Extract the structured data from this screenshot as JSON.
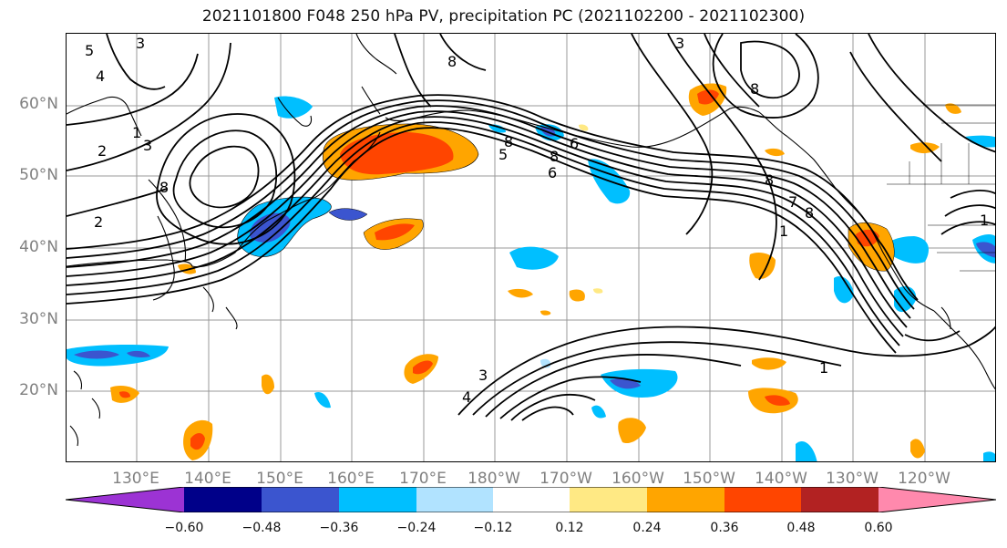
{
  "title": "2021101800 F048 250 hPa PV, precipitation PC (2021102200 - 2021102300)",
  "lat_labels": [
    "60°N",
    "50°N",
    "40°N",
    "30°N",
    "20°N"
  ],
  "lon_labels": [
    "130°E",
    "140°E",
    "150°E",
    "160°E",
    "170°E",
    "180°W",
    "170°W",
    "160°W",
    "150°W",
    "140°W",
    "130°W",
    "120°W"
  ],
  "colorbar": {
    "colors": [
      "#9c33d4",
      "#000089",
      "#3b55cf",
      "#00bfff",
      "#b1e3ff",
      "#ffffff",
      "#ffe984",
      "#ffa500",
      "#ff4500",
      "#b22222",
      "#ff89ad"
    ],
    "tick_labels": [
      "−0.60",
      "−0.48",
      "−0.36",
      "−0.24",
      "−0.12",
      "0.12",
      "0.24",
      "0.36",
      "0.48",
      "0.60"
    ]
  },
  "contour_labels": [
    "5",
    "4",
    "2",
    "3",
    "1",
    "2",
    "8",
    "3",
    "8",
    "3",
    "8",
    "6",
    "5",
    "8",
    "7",
    "1",
    "1",
    "4",
    "3",
    "8",
    "8",
    "6",
    "8",
    "1"
  ]
}
